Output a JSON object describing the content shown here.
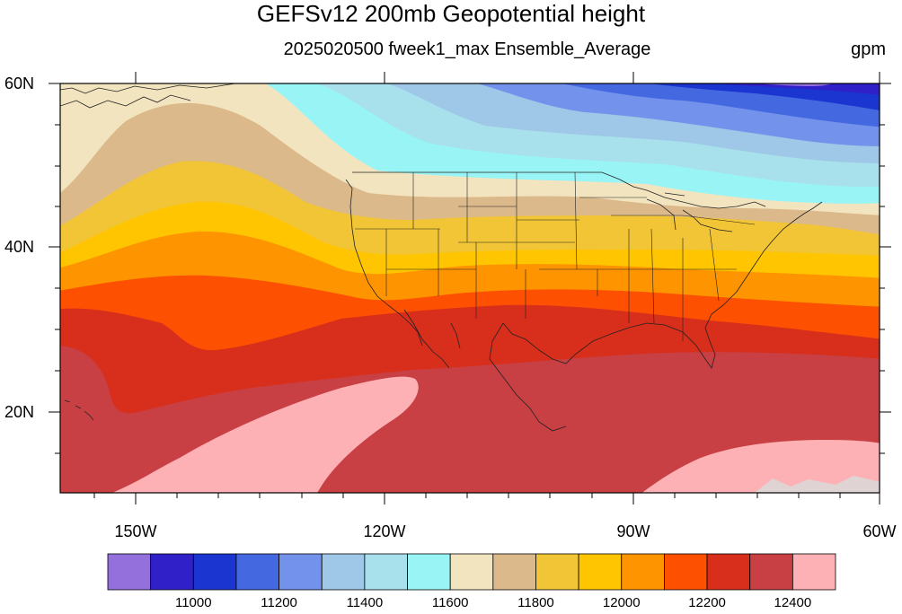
{
  "title": "GEFSv12 200mb Geopotential height",
  "subtitle": "2025020500 fweek1_max Ensemble_Average",
  "units": "gpm",
  "map": {
    "lon_range": [
      -159,
      -60
    ],
    "lat_range": [
      10,
      60
    ],
    "lon_ticks": [
      {
        "value": -150,
        "label": "150W"
      },
      {
        "value": -120,
        "label": "120W"
      },
      {
        "value": -90,
        "label": "90W"
      },
      {
        "value": -60,
        "label": "60W"
      }
    ],
    "lat_ticks": [
      {
        "value": 60,
        "label": "60N"
      },
      {
        "value": 40,
        "label": "40N"
      },
      {
        "value": 20,
        "label": "20N"
      }
    ]
  },
  "colorbar": {
    "colors": [
      "#9370db",
      "#3020c8",
      "#1a35d0",
      "#4468e0",
      "#7392ec",
      "#9fc7e8",
      "#a8e0ec",
      "#99f5f5",
      "#f3e4c0",
      "#dcb98a",
      "#f1c535",
      "#fec500",
      "#fe9400",
      "#fd5000",
      "#d82f1d",
      "#c84044",
      "#fdb1b4"
    ],
    "labels": [
      "11000",
      "11200",
      "11400",
      "11600",
      "11800",
      "12000",
      "12200",
      "12400"
    ]
  },
  "chart_data": {
    "type": "heatmap",
    "title": "GEFSv12 200mb Geopotential height",
    "subtitle": "2025020500 fweek1_max Ensemble_Average",
    "units": "gpm",
    "xlim": [
      -159,
      -60
    ],
    "ylim": [
      10,
      60
    ],
    "contour_levels": [
      10900,
      11000,
      11100,
      11200,
      11300,
      11400,
      11500,
      11600,
      11700,
      11800,
      11900,
      12000,
      12100,
      12200,
      12300,
      12400
    ],
    "approx_field": [
      {
        "lat": 58,
        "lon": -150,
        "gpm": 11750
      },
      {
        "lat": 58,
        "lon": -120,
        "gpm": 11600
      },
      {
        "lat": 58,
        "lon": -90,
        "gpm": 11250
      },
      {
        "lat": 58,
        "lon": -65,
        "gpm": 10950
      },
      {
        "lat": 47,
        "lon": -150,
        "gpm": 11800
      },
      {
        "lat": 47,
        "lon": -120,
        "gpm": 11750
      },
      {
        "lat": 47,
        "lon": -90,
        "gpm": 11700
      },
      {
        "lat": 47,
        "lon": -65,
        "gpm": 11550
      },
      {
        "lat": 40,
        "lon": -150,
        "gpm": 12000
      },
      {
        "lat": 40,
        "lon": -120,
        "gpm": 11900
      },
      {
        "lat": 40,
        "lon": -90,
        "gpm": 11950
      },
      {
        "lat": 40,
        "lon": -65,
        "gpm": 11950
      },
      {
        "lat": 30,
        "lon": -150,
        "gpm": 12250
      },
      {
        "lat": 30,
        "lon": -120,
        "gpm": 12300
      },
      {
        "lat": 30,
        "lon": -90,
        "gpm": 12300
      },
      {
        "lat": 30,
        "lon": -65,
        "gpm": 12250
      },
      {
        "lat": 18,
        "lon": -150,
        "gpm": 12300
      },
      {
        "lat": 18,
        "lon": -125,
        "gpm": 12400
      },
      {
        "lat": 18,
        "lon": -90,
        "gpm": 12300
      },
      {
        "lat": 13,
        "lon": -70,
        "gpm": 12400
      }
    ]
  }
}
